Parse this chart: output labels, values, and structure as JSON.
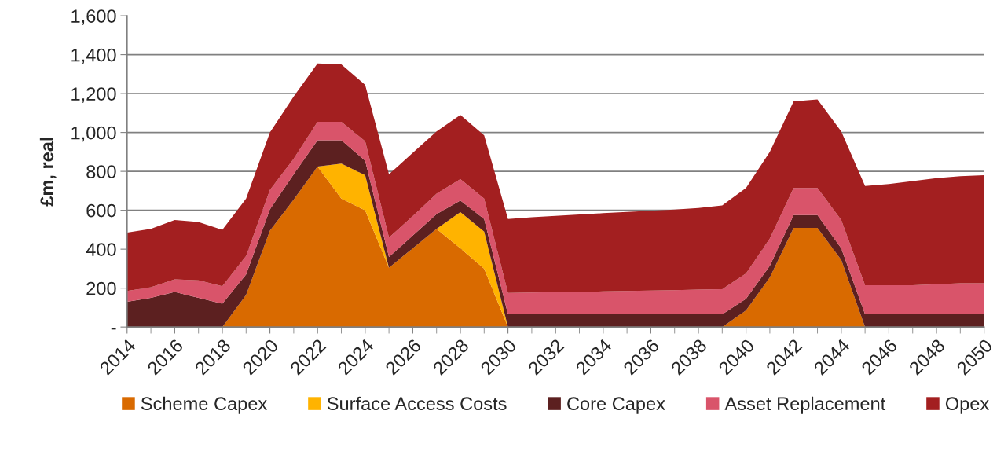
{
  "chart_data": {
    "type": "area",
    "stacked": true,
    "ylabel": "£m, real",
    "x": [
      2014,
      2015,
      2016,
      2017,
      2018,
      2019,
      2020,
      2021,
      2022,
      2023,
      2024,
      2025,
      2026,
      2027,
      2028,
      2029,
      2030,
      2031,
      2032,
      2033,
      2034,
      2035,
      2036,
      2037,
      2038,
      2039,
      2040,
      2041,
      2042,
      2043,
      2044,
      2045,
      2046,
      2047,
      2048,
      2049,
      2050
    ],
    "series": [
      {
        "name": "Scheme Capex",
        "color": "#d96a00",
        "values": [
          0,
          0,
          0,
          0,
          0,
          165,
          495,
          655,
          825,
          660,
          600,
          305,
          405,
          505,
          405,
          300,
          0,
          0,
          0,
          0,
          0,
          0,
          0,
          0,
          0,
          0,
          85,
          255,
          510,
          510,
          345,
          0,
          0,
          0,
          0,
          0,
          0
        ]
      },
      {
        "name": "Surface Access Costs",
        "color": "#ffb300",
        "values": [
          0,
          0,
          0,
          0,
          0,
          0,
          0,
          0,
          0,
          180,
          180,
          0,
          0,
          0,
          185,
          190,
          0,
          0,
          0,
          0,
          0,
          0,
          0,
          0,
          0,
          0,
          0,
          0,
          0,
          0,
          0,
          0,
          0,
          0,
          0,
          0,
          0
        ]
      },
      {
        "name": "Core Capex",
        "color": "#5c2020",
        "values": [
          130,
          150,
          180,
          150,
          120,
          105,
          110,
          130,
          135,
          120,
          75,
          55,
          65,
          75,
          60,
          65,
          65,
          65,
          65,
          65,
          65,
          65,
          65,
          65,
          65,
          65,
          60,
          60,
          65,
          65,
          60,
          65,
          65,
          65,
          65,
          65,
          65
        ]
      },
      {
        "name": "Asset Replacement",
        "color": "#d9546a",
        "values": [
          55,
          55,
          65,
          90,
          90,
          95,
          100,
          80,
          95,
          95,
          100,
          100,
          100,
          105,
          110,
          105,
          110,
          112,
          114,
          116,
          118,
          120,
          122,
          124,
          127,
          130,
          130,
          140,
          140,
          140,
          145,
          150,
          150,
          150,
          155,
          160,
          160
        ]
      },
      {
        "name": "Opex",
        "color": "#a31f20",
        "values": [
          300,
          300,
          305,
          300,
          290,
          295,
          295,
          320,
          300,
          295,
          290,
          325,
          325,
          320,
          330,
          325,
          380,
          387,
          392,
          397,
          402,
          406,
          410,
          415,
          420,
          430,
          440,
          445,
          445,
          455,
          455,
          510,
          520,
          535,
          545,
          550,
          555
        ]
      }
    ],
    "xlim": [
      2014,
      2050
    ],
    "xticks": [
      2014,
      2016,
      2018,
      2020,
      2022,
      2024,
      2026,
      2028,
      2030,
      2032,
      2034,
      2036,
      2038,
      2040,
      2042,
      2044,
      2046,
      2048,
      2050
    ],
    "ylim": [
      0,
      1600
    ],
    "yticks": [
      {
        "value": 0,
        "label": "-"
      },
      {
        "value": 200,
        "label": "200"
      },
      {
        "value": 400,
        "label": "400"
      },
      {
        "value": 600,
        "label": "600"
      },
      {
        "value": 800,
        "label": "800"
      },
      {
        "value": 1000,
        "label": "1,000"
      },
      {
        "value": 1200,
        "label": "1,200"
      },
      {
        "value": 1400,
        "label": "1,400"
      },
      {
        "value": 1600,
        "label": "1,600"
      }
    ],
    "grid": "y",
    "legend": "bottom"
  }
}
